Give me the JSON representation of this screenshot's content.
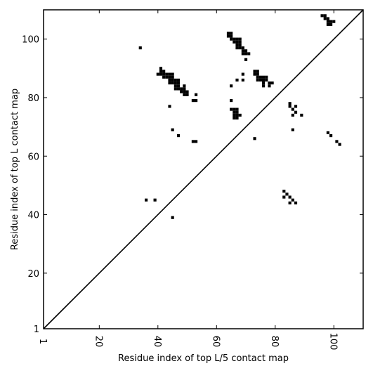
{
  "chart_data": {
    "type": "scatter",
    "xlabel": "Residue index of top L/5 contact map",
    "ylabel": "Residue index of top L contact map",
    "xlim": [
      1,
      110
    ],
    "ylim": [
      1,
      110
    ],
    "x_ticks": [
      1,
      20,
      40,
      60,
      80,
      100
    ],
    "y_ticks": [
      1,
      20,
      40,
      60,
      80,
      100
    ],
    "x_tick_labels": [
      "1",
      "20",
      "40",
      "60",
      "80",
      "100"
    ],
    "y_tick_labels": [
      "1",
      "20",
      "40",
      "60",
      "80",
      "100"
    ],
    "diagonal": [
      [
        1,
        1
      ],
      [
        110,
        110
      ]
    ],
    "marker_color": "#000000",
    "grid": false,
    "points": [
      [
        34,
        97
      ],
      [
        40,
        88
      ],
      [
        41,
        88
      ],
      [
        41,
        89
      ],
      [
        41,
        90
      ],
      [
        42,
        87
      ],
      [
        42,
        88
      ],
      [
        42,
        89
      ],
      [
        43,
        87
      ],
      [
        43,
        88
      ],
      [
        44,
        85
      ],
      [
        44,
        86
      ],
      [
        44,
        87
      ],
      [
        44,
        88
      ],
      [
        45,
        85
      ],
      [
        45,
        86
      ],
      [
        45,
        87
      ],
      [
        45,
        88
      ],
      [
        46,
        83
      ],
      [
        46,
        84
      ],
      [
        46,
        85
      ],
      [
        46,
        86
      ],
      [
        47,
        83
      ],
      [
        47,
        84
      ],
      [
        47,
        85
      ],
      [
        47,
        86
      ],
      [
        48,
        82
      ],
      [
        48,
        83
      ],
      [
        49,
        81
      ],
      [
        49,
        82
      ],
      [
        49,
        83
      ],
      [
        49,
        84
      ],
      [
        50,
        81
      ],
      [
        50,
        82
      ],
      [
        44,
        77
      ],
      [
        53,
        81
      ],
      [
        52,
        79
      ],
      [
        53,
        79
      ],
      [
        45,
        69
      ],
      [
        47,
        67
      ],
      [
        52,
        65
      ],
      [
        53,
        65
      ],
      [
        36,
        45
      ],
      [
        39,
        45
      ],
      [
        45,
        39
      ],
      [
        64,
        101
      ],
      [
        64,
        102
      ],
      [
        65,
        100
      ],
      [
        65,
        101
      ],
      [
        65,
        102
      ],
      [
        66,
        99
      ],
      [
        66,
        100
      ],
      [
        67,
        97
      ],
      [
        67,
        98
      ],
      [
        67,
        99
      ],
      [
        67,
        100
      ],
      [
        68,
        97
      ],
      [
        68,
        98
      ],
      [
        68,
        99
      ],
      [
        68,
        100
      ],
      [
        69,
        95
      ],
      [
        69,
        96
      ],
      [
        69,
        97
      ],
      [
        70,
        95
      ],
      [
        70,
        96
      ],
      [
        71,
        95
      ],
      [
        70,
        93
      ],
      [
        69,
        88
      ],
      [
        69,
        86
      ],
      [
        67,
        86
      ],
      [
        65,
        84
      ],
      [
        65,
        79
      ],
      [
        65,
        76
      ],
      [
        66,
        73
      ],
      [
        66,
        74
      ],
      [
        66,
        75
      ],
      [
        66,
        76
      ],
      [
        67,
        73
      ],
      [
        67,
        74
      ],
      [
        67,
        75
      ],
      [
        67,
        76
      ],
      [
        68,
        74
      ],
      [
        73,
        66
      ],
      [
        73,
        88
      ],
      [
        73,
        89
      ],
      [
        74,
        86
      ],
      [
        74,
        87
      ],
      [
        74,
        88
      ],
      [
        74,
        89
      ],
      [
        75,
        86
      ],
      [
        75,
        87
      ],
      [
        76,
        84
      ],
      [
        76,
        85
      ],
      [
        76,
        86
      ],
      [
        76,
        87
      ],
      [
        77,
        86
      ],
      [
        77,
        87
      ],
      [
        78,
        84
      ],
      [
        78,
        85
      ],
      [
        79,
        85
      ],
      [
        85,
        77
      ],
      [
        85,
        78
      ],
      [
        86,
        74
      ],
      [
        86,
        76
      ],
      [
        87,
        75
      ],
      [
        87,
        77
      ],
      [
        89,
        74
      ],
      [
        86,
        69
      ],
      [
        83,
        46
      ],
      [
        83,
        48
      ],
      [
        84,
        47
      ],
      [
        85,
        44
      ],
      [
        85,
        46
      ],
      [
        86,
        45
      ],
      [
        87,
        44
      ],
      [
        96,
        108
      ],
      [
        97,
        107
      ],
      [
        97,
        108
      ],
      [
        98,
        105
      ],
      [
        98,
        106
      ],
      [
        98,
        107
      ],
      [
        99,
        105
      ],
      [
        99,
        106
      ],
      [
        100,
        106
      ],
      [
        98,
        68
      ],
      [
        99,
        67
      ],
      [
        101,
        65
      ],
      [
        102,
        64
      ]
    ]
  }
}
